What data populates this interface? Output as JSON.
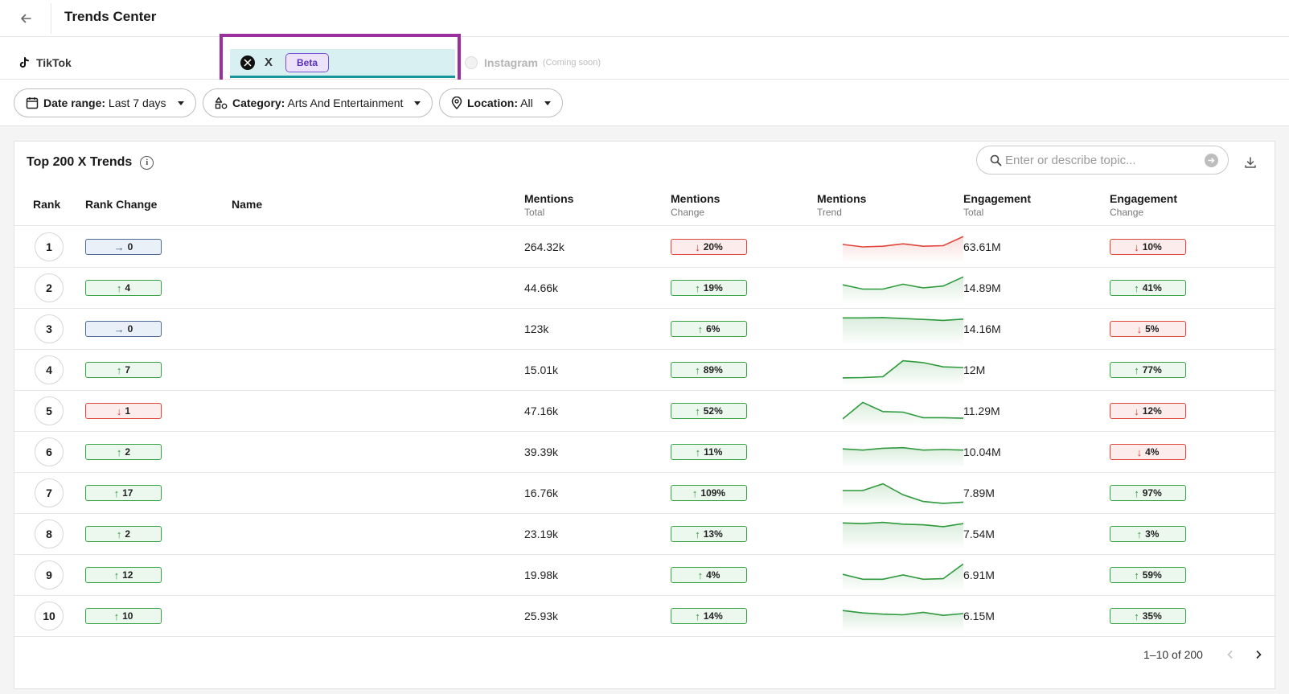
{
  "header": {
    "title": "Trends Center",
    "back_icon": "arrow-left-icon"
  },
  "tabs": [
    {
      "label": "TikTok",
      "icon": "tiktok-icon",
      "selected": false
    },
    {
      "label": "X",
      "icon": "x-logo-icon",
      "badge": "Beta",
      "selected": true
    },
    {
      "label": "Instagram",
      "icon": "instagram-icon",
      "suffix": "(Coming soon)",
      "disabled": true
    }
  ],
  "filters": {
    "date": {
      "key": "Date range:",
      "value": "Last 7 days",
      "icon": "calendar-icon"
    },
    "category": {
      "key": "Category:",
      "value": "Arts And Entertainment",
      "icon": "category-shapes-icon"
    },
    "location": {
      "key": "Location:",
      "value": "All",
      "icon": "location-pin-icon"
    }
  },
  "table": {
    "title": "Top 200 X Trends",
    "search_placeholder": "Enter or describe topic...",
    "columns": {
      "rank": "Rank",
      "rank_change": "Rank Change",
      "name": "Name",
      "mentions_total": {
        "title": "Mentions",
        "sub": "Total"
      },
      "mentions_change": {
        "title": "Mentions",
        "sub": "Change"
      },
      "mentions_trend": {
        "title": "Mentions",
        "sub": "Trend"
      },
      "engagement_total": {
        "title": "Engagement",
        "sub": "Total"
      },
      "engagement_change": {
        "title": "Engagement",
        "sub": "Change"
      }
    },
    "rows": [
      {
        "rank": "1",
        "rank_change": {
          "dir": "flat",
          "value": "0"
        },
        "name": "",
        "mentions_total": "264.32k",
        "mentions_change": {
          "dir": "down",
          "value": "20%"
        },
        "trend": {
          "color": "#e0453a",
          "values": [
            2.9,
            2.5,
            2.6,
            3.0,
            2.6,
            2.7,
            4.2
          ]
        },
        "engagement_total": "63.61M",
        "engagement_change": {
          "dir": "down",
          "value": "10%"
        }
      },
      {
        "rank": "2",
        "rank_change": {
          "dir": "up",
          "value": "4"
        },
        "name": "",
        "mentions_total": "44.66k",
        "mentions_change": {
          "dir": "up",
          "value": "19%"
        },
        "trend": {
          "color": "#2e9a3c",
          "values": [
            3.0,
            2.3,
            2.3,
            3.1,
            2.5,
            2.8,
            4.3
          ]
        },
        "engagement_total": "14.89M",
        "engagement_change": {
          "dir": "up",
          "value": "41%"
        }
      },
      {
        "rank": "3",
        "rank_change": {
          "dir": "flat",
          "value": "0"
        },
        "name": "",
        "mentions_total": "123k",
        "mentions_change": {
          "dir": "up",
          "value": "6%"
        },
        "trend": {
          "color": "#2e9a3c",
          "values": [
            4.3,
            4.3,
            4.35,
            4.2,
            4.05,
            3.9,
            4.1
          ]
        },
        "engagement_total": "14.16M",
        "engagement_change": {
          "dir": "down",
          "value": "5%"
        }
      },
      {
        "rank": "4",
        "rank_change": {
          "dir": "up",
          "value": "7"
        },
        "name": "",
        "mentions_total": "15.01k",
        "mentions_change": {
          "dir": "up",
          "value": "89%"
        },
        "trend": {
          "color": "#2e9a3c",
          "values": [
            1.2,
            1.25,
            1.4,
            4.0,
            3.7,
            3.0,
            2.9
          ]
        },
        "engagement_total": "12M",
        "engagement_change": {
          "dir": "up",
          "value": "77%"
        }
      },
      {
        "rank": "5",
        "rank_change": {
          "dir": "down",
          "value": "1"
        },
        "name": "",
        "mentions_total": "47.16k",
        "mentions_change": {
          "dir": "up",
          "value": "52%"
        },
        "trend": {
          "color": "#2e9a3c",
          "values": [
            1.2,
            3.9,
            2.4,
            2.3,
            1.4,
            1.4,
            1.3
          ]
        },
        "engagement_total": "11.29M",
        "engagement_change": {
          "dir": "down",
          "value": "12%"
        }
      },
      {
        "rank": "6",
        "rank_change": {
          "dir": "up",
          "value": "2"
        },
        "name": "",
        "mentions_total": "39.39k",
        "mentions_change": {
          "dir": "up",
          "value": "11%"
        },
        "trend": {
          "color": "#2e9a3c",
          "values": [
            3.0,
            2.8,
            3.1,
            3.2,
            2.8,
            2.9,
            2.8
          ]
        },
        "engagement_total": "10.04M",
        "engagement_change": {
          "dir": "down",
          "value": "4%"
        }
      },
      {
        "rank": "7",
        "rank_change": {
          "dir": "up",
          "value": "17"
        },
        "name": "",
        "mentions_total": "16.76k",
        "mentions_change": {
          "dir": "up",
          "value": "109%"
        },
        "trend": {
          "color": "#2e9a3c",
          "values": [
            2.9,
            2.9,
            4.0,
            2.2,
            1.1,
            0.8,
            1.0
          ]
        },
        "engagement_total": "7.89M",
        "engagement_change": {
          "dir": "up",
          "value": "97%"
        }
      },
      {
        "rank": "8",
        "rank_change": {
          "dir": "up",
          "value": "2"
        },
        "name": "",
        "mentions_total": "23.19k",
        "mentions_change": {
          "dir": "up",
          "value": "13%"
        },
        "trend": {
          "color": "#2e9a3c",
          "values": [
            4.3,
            4.2,
            4.4,
            4.1,
            4.0,
            3.7,
            4.2
          ]
        },
        "engagement_total": "7.54M",
        "engagement_change": {
          "dir": "up",
          "value": "3%"
        }
      },
      {
        "rank": "9",
        "rank_change": {
          "dir": "up",
          "value": "12"
        },
        "name": "",
        "mentions_total": "19.98k",
        "mentions_change": {
          "dir": "up",
          "value": "4%"
        },
        "trend": {
          "color": "#2e9a3c",
          "values": [
            2.6,
            1.8,
            1.8,
            2.5,
            1.8,
            1.9,
            4.3
          ]
        },
        "engagement_total": "6.91M",
        "engagement_change": {
          "dir": "up",
          "value": "59%"
        }
      },
      {
        "rank": "10",
        "rank_change": {
          "dir": "up",
          "value": "10"
        },
        "name": "",
        "mentions_total": "25.93k",
        "mentions_change": {
          "dir": "up",
          "value": "14%"
        },
        "trend": {
          "color": "#2e9a3c",
          "values": [
            3.4,
            3.0,
            2.8,
            2.7,
            3.1,
            2.6,
            2.9
          ]
        },
        "engagement_total": "6.15M",
        "engagement_change": {
          "dir": "up",
          "value": "35%"
        }
      }
    ],
    "pagination": {
      "text": "1–10 of 200"
    }
  },
  "colors": {
    "accent": "#16979d",
    "highlight_box": "#9b2fa0",
    "up": "#2e9a3c",
    "down": "#e0453a",
    "flat": "#39527a"
  }
}
